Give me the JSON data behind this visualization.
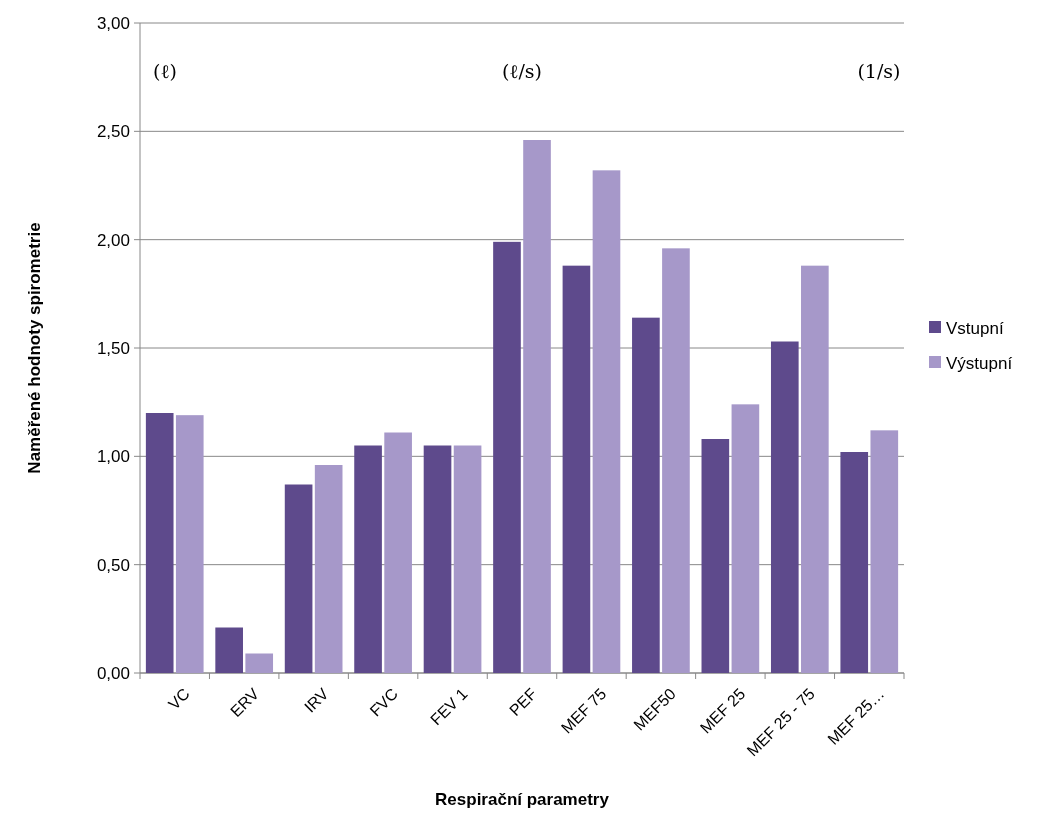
{
  "chart_data": {
    "type": "bar",
    "xlabel": "Respirační parametry",
    "ylabel": "Naměřené hodnoty spirometrie",
    "categories": [
      "VC",
      "ERV",
      "IRV",
      "FVC",
      "FEV 1",
      "PEF",
      "MEF 75",
      "MEF50",
      "MEF 25",
      "MEF 25 - 75",
      "MEF 25…"
    ],
    "series": [
      {
        "name": "Vstupní",
        "color": "#5e4a8c",
        "values": [
          1.2,
          0.21,
          0.87,
          1.05,
          1.05,
          1.99,
          1.88,
          1.64,
          1.08,
          1.53,
          1.02
        ]
      },
      {
        "name": "Výstupní",
        "color": "#a698c9",
        "values": [
          1.19,
          0.09,
          0.96,
          1.11,
          1.05,
          2.46,
          2.32,
          1.96,
          1.24,
          1.88,
          1.12
        ]
      }
    ],
    "ylim": [
      0,
      3
    ],
    "yticks": [
      {
        "value": 0,
        "label": "0,00"
      },
      {
        "value": 0.5,
        "label": "0,50"
      },
      {
        "value": 1,
        "label": "1,00"
      },
      {
        "value": 1.5,
        "label": "1,50"
      },
      {
        "value": 2,
        "label": "2,00"
      },
      {
        "value": 2.5,
        "label": "2,50"
      },
      {
        "value": 3,
        "label": "3,00"
      }
    ],
    "grid": "y",
    "legend": "right",
    "annotations": [
      "(ℓ)",
      "(ℓ/s)",
      "(1/s)"
    ]
  }
}
